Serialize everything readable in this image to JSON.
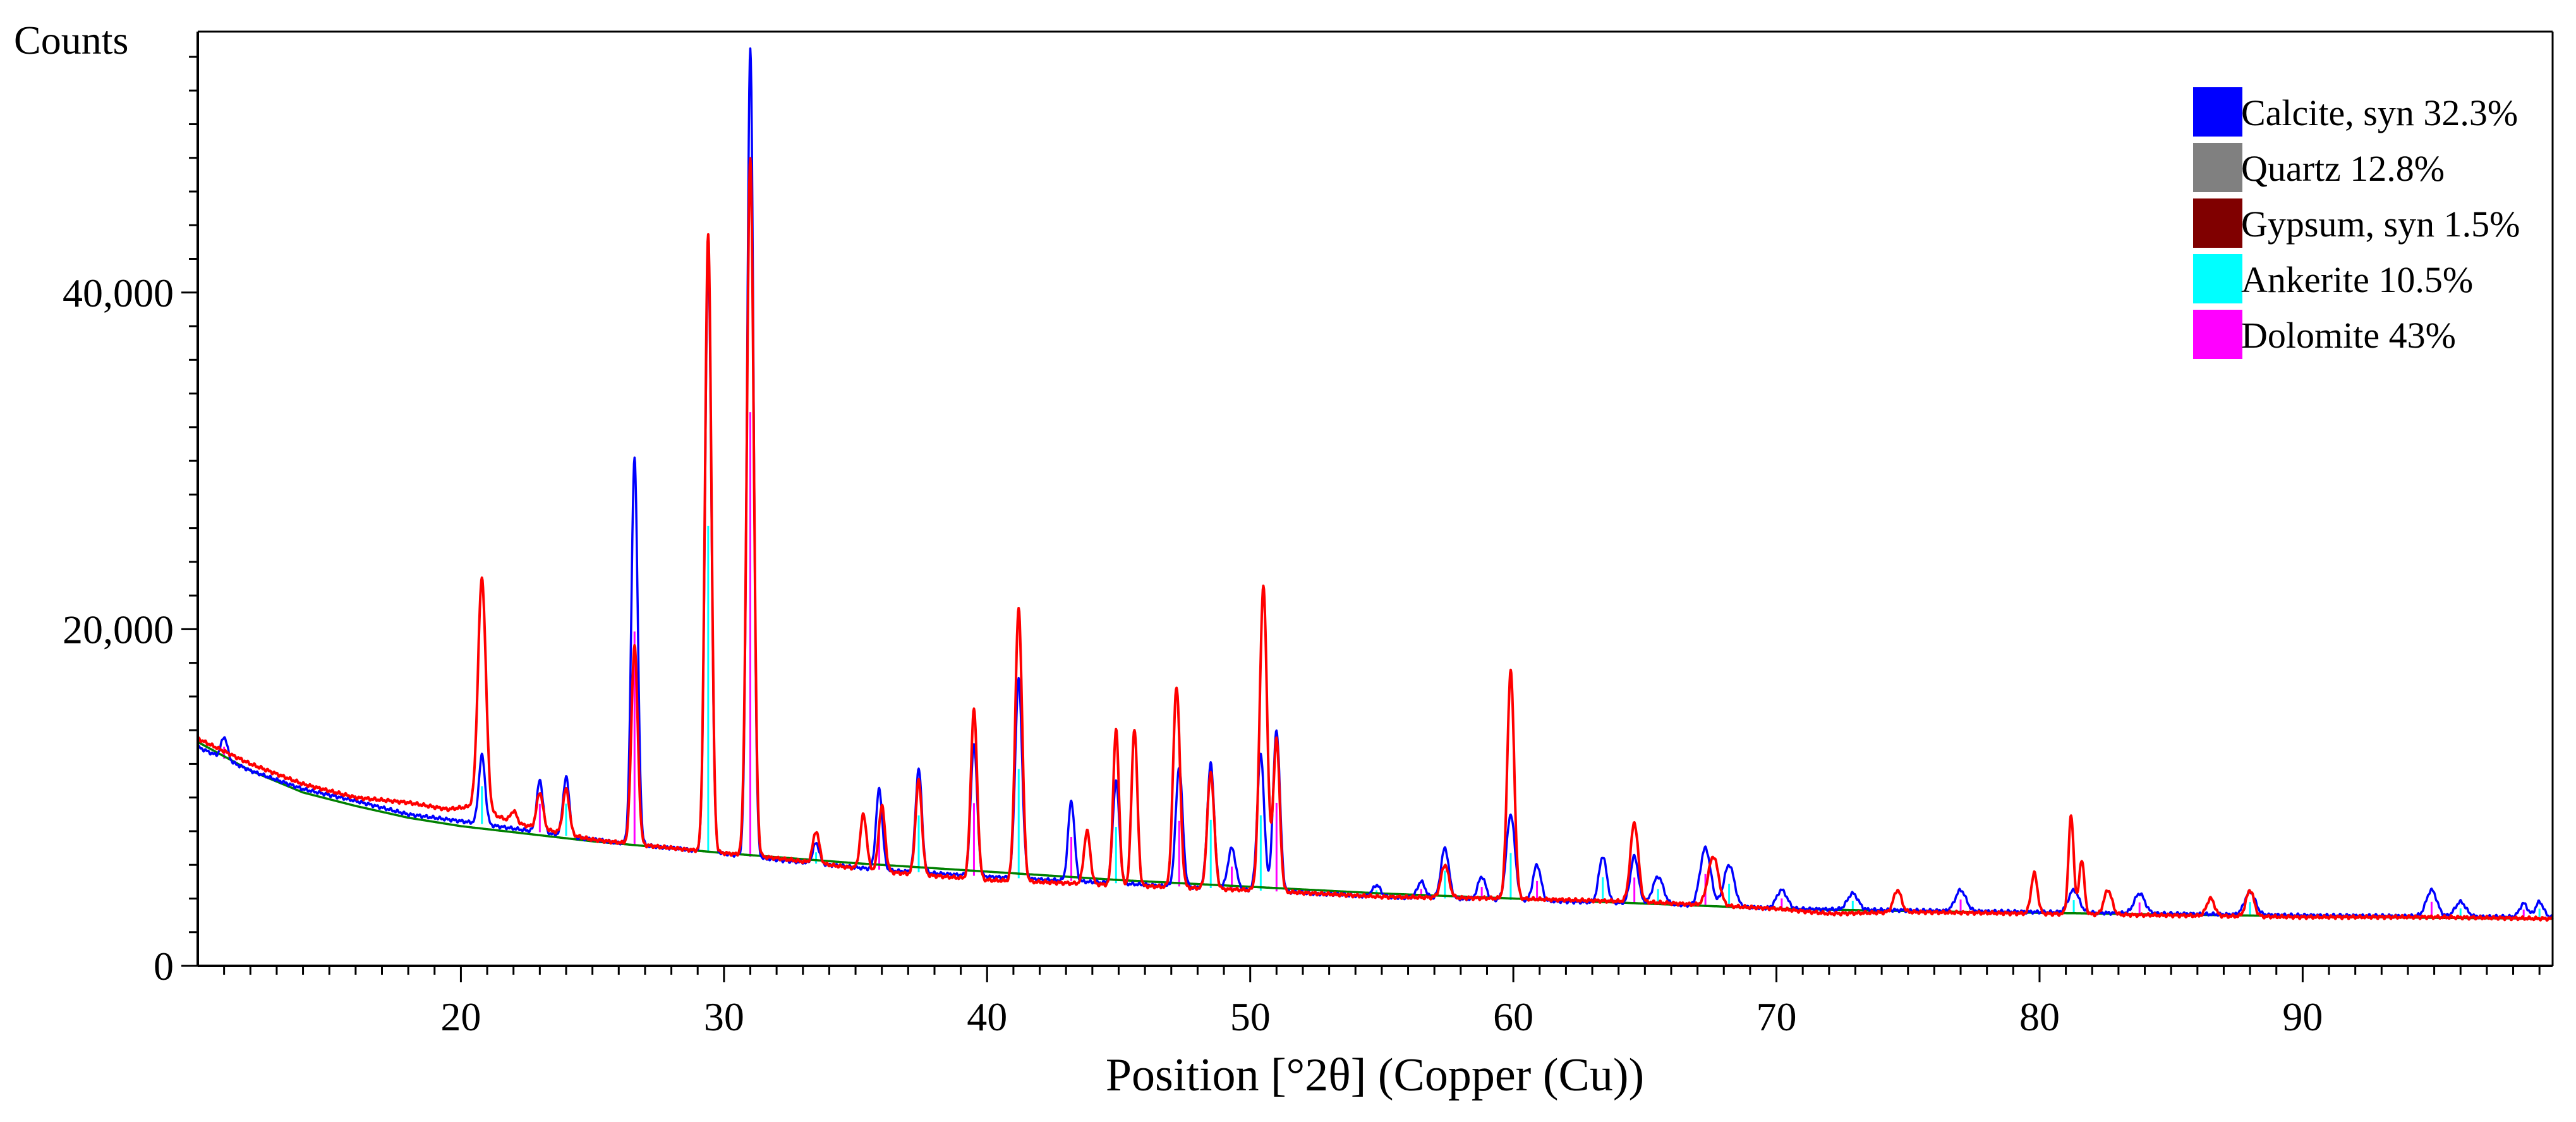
{
  "chart_data": {
    "type": "line",
    "title": "",
    "ylabel": "Counts",
    "xlabel": "Position [°2θ] (Copper (Cu))",
    "xlim": [
      10,
      99.5
    ],
    "ylim": [
      0,
      55500
    ],
    "xticks": [
      20,
      30,
      40,
      50,
      60,
      70,
      80,
      90
    ],
    "xtick_labels": [
      "20",
      "30",
      "40",
      "50",
      "60",
      "70",
      "80",
      "90"
    ],
    "yticks": [
      0,
      20000,
      40000
    ],
    "ytick_labels": [
      "0",
      "20,000",
      "40,000"
    ],
    "grid": false,
    "legend_position": "top-right",
    "legend": [
      {
        "label": "Calcite, syn 32.3%",
        "color": "#0000ff"
      },
      {
        "label": "Quartz 12.8%",
        "color": "#808080"
      },
      {
        "label": "Gypsum, syn 1.5%",
        "color": "#800000"
      },
      {
        "label": "Ankerite 10.5%",
        "color": "#00ffff"
      },
      {
        "label": "Dolomite 43%",
        "color": "#ff00ff"
      }
    ],
    "series": [
      {
        "color": "#ff0000",
        "background": [
          [
            10,
            13500
          ],
          [
            12,
            12000
          ],
          [
            14,
            10800
          ],
          [
            16,
            10000
          ],
          [
            18,
            9700
          ],
          [
            19.5,
            9300
          ],
          [
            20.5,
            9500
          ],
          [
            22,
            8500
          ],
          [
            25,
            7500
          ],
          [
            28,
            7000
          ],
          [
            32,
            6400
          ],
          [
            36,
            5600
          ],
          [
            40,
            5100
          ],
          [
            45,
            4800
          ],
          [
            50,
            4500
          ],
          [
            55,
            4100
          ],
          [
            60,
            4000
          ],
          [
            65,
            3800
          ],
          [
            70,
            3400
          ],
          [
            72,
            3100
          ],
          [
            75,
            3200
          ],
          [
            80,
            3100
          ],
          [
            85,
            3000
          ],
          [
            90,
            2900
          ],
          [
            95,
            2900
          ],
          [
            99.5,
            2800
          ]
        ],
        "peaks": [
          [
            20.8,
            23000,
            0.15
          ],
          [
            22.0,
            9200,
            0.12
          ],
          [
            23.0,
            10300,
            0.12
          ],
          [
            24.0,
            10500,
            0.12
          ],
          [
            26.6,
            19000,
            0.12
          ],
          [
            29.4,
            43500,
            0.12
          ],
          [
            31.0,
            48000,
            0.13
          ],
          [
            33.5,
            8000,
            0.12
          ],
          [
            35.3,
            9000,
            0.12
          ],
          [
            36.0,
            9500,
            0.12
          ],
          [
            37.4,
            11000,
            0.12
          ],
          [
            39.5,
            15200,
            0.12
          ],
          [
            41.2,
            21200,
            0.13
          ],
          [
            43.8,
            8000,
            0.12
          ],
          [
            44.9,
            14000,
            0.11
          ],
          [
            45.6,
            14100,
            0.11
          ],
          [
            47.2,
            16600,
            0.13
          ],
          [
            48.5,
            11500,
            0.13
          ],
          [
            50.5,
            22500,
            0.14
          ],
          [
            51.0,
            13500,
            0.12
          ],
          [
            57.4,
            6000,
            0.15
          ],
          [
            59.9,
            17500,
            0.13
          ],
          [
            64.6,
            8500,
            0.15
          ],
          [
            67.6,
            6500,
            0.2
          ],
          [
            74.6,
            4500,
            0.15
          ],
          [
            79.8,
            5500,
            0.12
          ],
          [
            81.2,
            8900,
            0.1
          ],
          [
            81.6,
            6300,
            0.1
          ],
          [
            82.6,
            4500,
            0.15
          ],
          [
            86.5,
            4000,
            0.15
          ],
          [
            88.0,
            4500,
            0.15
          ]
        ]
      },
      {
        "color": "#0000ff",
        "background": [
          [
            10,
            13000
          ],
          [
            12,
            11600
          ],
          [
            14,
            10500
          ],
          [
            16,
            9800
          ],
          [
            18,
            9000
          ],
          [
            20,
            8600
          ],
          [
            25,
            7500
          ],
          [
            28,
            7000
          ],
          [
            32,
            6300
          ],
          [
            36,
            5700
          ],
          [
            40,
            5300
          ],
          [
            45,
            4900
          ],
          [
            50,
            4500
          ],
          [
            55,
            4100
          ],
          [
            60,
            3900
          ],
          [
            65,
            3700
          ],
          [
            70,
            3400
          ],
          [
            75,
            3300
          ],
          [
            80,
            3200
          ],
          [
            85,
            3100
          ],
          [
            90,
            3000
          ],
          [
            95,
            2950
          ],
          [
            99.5,
            2900
          ]
        ],
        "peaks": [
          [
            11.0,
            13600,
            0.12
          ],
          [
            20.8,
            12500,
            0.12
          ],
          [
            23.0,
            11000,
            0.12
          ],
          [
            24.0,
            11200,
            0.12
          ],
          [
            26.6,
            30200,
            0.12
          ],
          [
            29.4,
            42000,
            0.12
          ],
          [
            31.0,
            54500,
            0.12
          ],
          [
            33.5,
            7300,
            0.12
          ],
          [
            35.9,
            10500,
            0.12
          ],
          [
            37.4,
            11700,
            0.12
          ],
          [
            39.5,
            13200,
            0.12
          ],
          [
            41.2,
            17000,
            0.13
          ],
          [
            43.2,
            9800,
            0.12
          ],
          [
            44.9,
            11000,
            0.12
          ],
          [
            47.3,
            11800,
            0.13
          ],
          [
            48.5,
            12000,
            0.13
          ],
          [
            49.3,
            7000,
            0.15
          ],
          [
            50.4,
            12600,
            0.13
          ],
          [
            51.0,
            14000,
            0.13
          ],
          [
            54.8,
            4800,
            0.15
          ],
          [
            56.5,
            5000,
            0.15
          ],
          [
            57.4,
            7000,
            0.15
          ],
          [
            58.8,
            5300,
            0.15
          ],
          [
            59.9,
            9000,
            0.16
          ],
          [
            60.9,
            6000,
            0.15
          ],
          [
            63.4,
            6500,
            0.15
          ],
          [
            64.6,
            6500,
            0.15
          ],
          [
            65.5,
            5300,
            0.2
          ],
          [
            67.3,
            7000,
            0.2
          ],
          [
            68.2,
            6000,
            0.2
          ],
          [
            70.2,
            4500,
            0.2
          ],
          [
            72.9,
            4300,
            0.2
          ],
          [
            77.0,
            4500,
            0.2
          ],
          [
            81.3,
            4500,
            0.2
          ],
          [
            83.8,
            4300,
            0.2
          ],
          [
            88.0,
            4400,
            0.2
          ],
          [
            94.9,
            4500,
            0.2
          ],
          [
            96.0,
            3800,
            0.2
          ],
          [
            98.4,
            3700,
            0.15
          ],
          [
            99.0,
            3800,
            0.15
          ]
        ]
      },
      {
        "color": "#008000",
        "background": [
          [
            10,
            13300
          ],
          [
            12,
            11600
          ],
          [
            14,
            10300
          ],
          [
            16,
            9500
          ],
          [
            18,
            8800
          ],
          [
            20,
            8300
          ],
          [
            25,
            7400
          ],
          [
            30,
            6700
          ],
          [
            35,
            6100
          ],
          [
            40,
            5600
          ],
          [
            45,
            5100
          ],
          [
            50,
            4700
          ],
          [
            55,
            4300
          ],
          [
            60,
            4000
          ],
          [
            65,
            3700
          ],
          [
            70,
            3400
          ],
          [
            75,
            3250
          ],
          [
            80,
            3150
          ],
          [
            85,
            3050
          ],
          [
            90,
            2950
          ],
          [
            95,
            2850
          ],
          [
            99.5,
            2800
          ]
        ],
        "peaks": []
      }
    ]
  }
}
